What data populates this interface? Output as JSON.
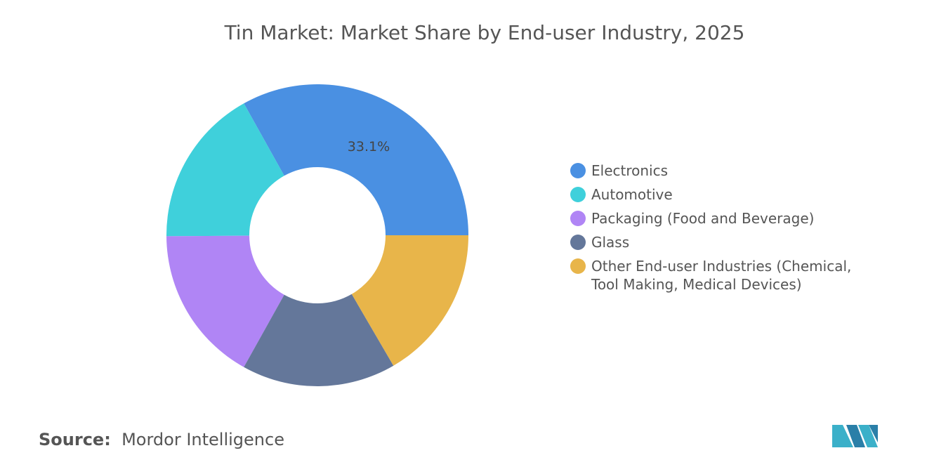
{
  "chart_data": {
    "type": "donut",
    "title": "Tin Market: Market Share by End-user Industry, 2025",
    "categories": [
      "Electronics",
      "Automotive",
      "Packaging (Food and Beverage)",
      "Glass",
      "Other End-user Industries (Chemical, Tool Making, Medical Devices)"
    ],
    "values": [
      33.1,
      17.0,
      16.8,
      16.5,
      16.6
    ],
    "value_labels": [
      "33.1%",
      null,
      null,
      null,
      null
    ],
    "colors": [
      "#4a90e2",
      "#3fd0db",
      "#b085f5",
      "#64779a",
      "#e8b54a"
    ],
    "legend": "right",
    "source_label": "Source:",
    "source": "Mordor Intelligence"
  }
}
